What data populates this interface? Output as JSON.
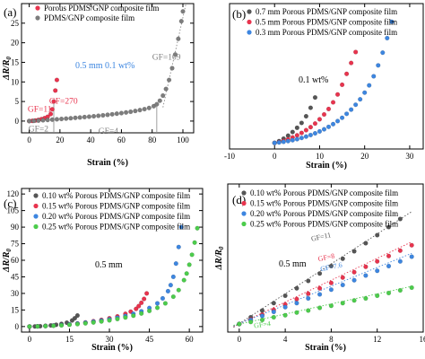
{
  "colors": {
    "red": "#e8344e",
    "gray": "#7d7d7d",
    "blue": "#3d86e0",
    "green": "#4ccc4c",
    "dark": "#555555",
    "axis": "#000000",
    "fit_line": "#888888"
  },
  "chart_data": [
    {
      "type": "scatter",
      "panel_label": "(a)",
      "xlabel": "Strain (%)",
      "ylabel": "ΔR/R",
      "ylabel_subscript": "0",
      "xlim": [
        -5,
        107
      ],
      "ylim": [
        -3,
        30
      ],
      "xticks": [
        0,
        20,
        40,
        60,
        80,
        100
      ],
      "yticks": [
        0,
        5,
        10,
        15,
        20,
        25
      ],
      "legend_position": "top-left",
      "conditions": "0.5 mm    0.1 wt%",
      "series": [
        {
          "name": "Porous PDMS/GNP composite film",
          "color_key": "red",
          "x": [
            0,
            2,
            4,
            6,
            8,
            10,
            12,
            14,
            15,
            16,
            17,
            18
          ],
          "y": [
            0,
            0.05,
            0.15,
            0.3,
            0.5,
            0.75,
            1.1,
            1.8,
            3.0,
            5.0,
            7.8,
            10.5
          ]
        },
        {
          "name": "PDMS/GNP composite film",
          "color_key": "gray",
          "x": [
            0,
            3,
            6,
            9,
            12,
            15,
            18,
            21,
            24,
            27,
            30,
            33,
            36,
            39,
            42,
            45,
            48,
            51,
            54,
            57,
            60,
            63,
            66,
            69,
            72,
            75,
            78,
            81,
            83,
            85,
            87,
            89,
            91,
            93,
            95,
            97,
            99,
            100
          ],
          "y": [
            0,
            0.05,
            0.12,
            0.2,
            0.28,
            0.37,
            0.45,
            0.54,
            0.63,
            0.72,
            0.82,
            0.92,
            1.02,
            1.12,
            1.23,
            1.35,
            1.47,
            1.6,
            1.73,
            1.88,
            2.03,
            2.2,
            2.38,
            2.58,
            2.8,
            3.05,
            3.35,
            3.8,
            4.3,
            5.2,
            6.5,
            8.2,
            10.5,
            13.5,
            17.0,
            21.0,
            25.5,
            28.0
          ]
        }
      ],
      "annotations": [
        {
          "text": "GF=11",
          "color_key": "red",
          "x": -1,
          "y": 2.4
        },
        {
          "text": "GF=270",
          "color_key": "red",
          "x": 13,
          "y": 4.5
        },
        {
          "text": "GF=2",
          "color_key": "gray",
          "x": -0.5,
          "y": -2.7
        },
        {
          "text": "GF=4",
          "color_key": "gray",
          "x": 45,
          "y": -3.2
        },
        {
          "text": "GF=109",
          "color_key": "gray",
          "x": 80,
          "y": 15.7
        }
      ],
      "vlines": [
        16,
        83
      ]
    },
    {
      "type": "scatter",
      "panel_label": "(b)",
      "xlabel": "Strain (%)",
      "ylabel": "",
      "xlim": [
        -10,
        33
      ],
      "ylim": [
        -1,
        23
      ],
      "xticks": [
        -10,
        0,
        10,
        20,
        30
      ],
      "yticks": [],
      "legend_position": "top-left",
      "conditions": "0.1 wt%",
      "series": [
        {
          "name": "0.7 mm Porous PDMS/GNP composite film",
          "color_key": "dark",
          "x": [
            0,
            1,
            2,
            3,
            4,
            5,
            6,
            7,
            8,
            9
          ],
          "y": [
            0,
            0.3,
            0.7,
            1.2,
            1.8,
            2.5,
            3.3,
            4.4,
            5.8,
            7.5
          ]
        },
        {
          "name": "0.5 mm Porous PDMS/GNP composite film",
          "color_key": "red",
          "x": [
            0,
            1,
            2,
            3,
            4,
            5,
            6,
            7,
            8,
            9,
            10,
            11,
            12,
            13,
            14,
            15,
            16,
            17,
            18
          ],
          "y": [
            0,
            0.15,
            0.35,
            0.6,
            0.9,
            1.25,
            1.65,
            2.1,
            2.6,
            3.2,
            3.9,
            4.7,
            5.6,
            6.7,
            8.0,
            9.6,
            11.4,
            13.2,
            15.0
          ]
        },
        {
          "name": "0.3 mm Porous PDMS/GNP composite film",
          "color_key": "blue",
          "x": [
            0,
            1,
            2,
            3,
            4,
            5,
            6,
            7,
            8,
            9,
            10,
            11,
            12,
            13,
            14,
            15,
            16,
            17,
            18,
            19,
            20,
            21,
            22,
            23,
            24,
            25,
            26
          ],
          "y": [
            0,
            0.08,
            0.18,
            0.3,
            0.45,
            0.62,
            0.82,
            1.05,
            1.3,
            1.58,
            1.9,
            2.25,
            2.65,
            3.1,
            3.6,
            4.15,
            4.8,
            5.5,
            6.3,
            7.2,
            8.3,
            9.5,
            11.0,
            12.8,
            14.9,
            17.3,
            20.0
          ]
        }
      ]
    },
    {
      "type": "scatter",
      "panel_label": "(c)",
      "xlabel": "Strain (%)",
      "ylabel": "ΔR/R",
      "ylabel_subscript": "0",
      "xlim": [
        -3,
        65
      ],
      "ylim": [
        -5,
        125
      ],
      "xticks": [
        0,
        15,
        30,
        45,
        60
      ],
      "yticks": [
        0,
        15,
        30,
        45,
        60,
        75,
        90,
        105,
        120
      ],
      "legend_position": "top-left",
      "conditions": "0.5 mm",
      "series": [
        {
          "name": "0.10 wt% Porous PDMS/GNP composite film",
          "color_key": "dark",
          "x": [
            0,
            2,
            4,
            6,
            8,
            10,
            12,
            14,
            16,
            17,
            18
          ],
          "y": [
            0,
            0.1,
            0.3,
            0.6,
            1.0,
            1.6,
            2.4,
            3.5,
            5.5,
            7.5,
            10.0
          ]
        },
        {
          "name": "0.15 wt% Porous PDMS/GNP composite film",
          "color_key": "red",
          "x": [
            0,
            3,
            6,
            9,
            12,
            15,
            18,
            21,
            24,
            27,
            30,
            33,
            36,
            38,
            40,
            41,
            42,
            43,
            44
          ],
          "y": [
            0,
            0.2,
            0.5,
            0.9,
            1.4,
            2.0,
            2.8,
            3.7,
            4.8,
            6.0,
            7.5,
            9.2,
            11.5,
            13.5,
            16.0,
            18.5,
            21.5,
            25.0,
            30.0
          ]
        },
        {
          "name": "0.20 wt% Porous PDMS/GNP composite film",
          "color_key": "blue",
          "x": [
            0,
            3,
            6,
            9,
            12,
            15,
            18,
            21,
            24,
            27,
            30,
            33,
            36,
            39,
            42,
            45,
            48,
            50,
            52,
            53,
            54,
            55,
            56,
            57
          ],
          "y": [
            0,
            0.2,
            0.5,
            0.9,
            1.4,
            2.0,
            2.7,
            3.5,
            4.4,
            5.4,
            6.6,
            8.0,
            9.6,
            11.5,
            13.8,
            16.8,
            21.0,
            25.5,
            32.0,
            37.5,
            45.0,
            57.0,
            72.0,
            90.0
          ]
        },
        {
          "name": "0.25 wt% Porous PDMS/GNP composite film",
          "color_key": "green",
          "x": [
            0,
            3,
            6,
            9,
            12,
            15,
            18,
            21,
            24,
            27,
            30,
            33,
            36,
            39,
            42,
            45,
            48,
            51,
            54,
            56,
            58,
            59,
            60,
            61,
            62,
            63
          ],
          "y": [
            0,
            0.15,
            0.4,
            0.7,
            1.1,
            1.6,
            2.2,
            2.9,
            3.7,
            4.6,
            5.6,
            6.8,
            8.2,
            9.8,
            11.8,
            14.2,
            17.0,
            21.0,
            27.0,
            33.0,
            42.0,
            48.0,
            56.0,
            65.0,
            76.0,
            89.0
          ]
        }
      ]
    },
    {
      "type": "scatter",
      "panel_label": "(d)",
      "xlabel": "Strain (%)",
      "ylabel": "ΔR/R",
      "ylabel_subscript": "0",
      "xlim": [
        -1,
        16
      ],
      "ylim": [
        -0.12,
        2.08
      ],
      "xticks": [
        0,
        4,
        8,
        12,
        16
      ],
      "yticks": [],
      "legend_position": "top-left",
      "conditions": "0.5 mm",
      "series": [
        {
          "name": "0.10 wt% Porous PDMS/GNP composite film",
          "color_key": "dark",
          "x": [
            0,
            1,
            2,
            3,
            4,
            5,
            6,
            7,
            8,
            9,
            10,
            11,
            12,
            13,
            14
          ],
          "y": [
            0,
            0.1,
            0.2,
            0.31,
            0.42,
            0.53,
            0.64,
            0.75,
            0.86,
            0.97,
            1.08,
            1.2,
            1.32,
            1.44,
            1.56
          ]
        },
        {
          "name": "0.15 wt% Porous PDMS/GNP composite film",
          "color_key": "red",
          "x": [
            0,
            1,
            2,
            3,
            4,
            5,
            6,
            7,
            8,
            9,
            10,
            11,
            12,
            13,
            14,
            15
          ],
          "y": [
            0,
            0.07,
            0.14,
            0.21,
            0.29,
            0.37,
            0.45,
            0.53,
            0.61,
            0.69,
            0.77,
            0.85,
            0.93,
            1.01,
            1.09,
            1.17
          ]
        },
        {
          "name": "0.20 wt% Porous PDMS/GNP composite film",
          "color_key": "blue",
          "x": [
            0,
            1,
            2,
            3,
            4,
            5,
            6,
            7,
            8,
            9,
            10,
            11,
            12,
            13,
            14,
            15
          ],
          "y": [
            0,
            0.06,
            0.12,
            0.18,
            0.25,
            0.31,
            0.38,
            0.44,
            0.51,
            0.58,
            0.65,
            0.72,
            0.79,
            0.86,
            0.93,
            1.0
          ]
        },
        {
          "name": "0.25 wt% Porous PDMS/GNP composite film",
          "color_key": "green",
          "x": [
            0,
            1,
            2,
            3,
            4,
            5,
            6,
            7,
            8,
            9,
            10,
            11,
            12,
            13,
            14,
            15
          ],
          "y": [
            0,
            0.03,
            0.06,
            0.1,
            0.13,
            0.17,
            0.2,
            0.24,
            0.27,
            0.31,
            0.35,
            0.38,
            0.42,
            0.46,
            0.5,
            0.54
          ]
        }
      ],
      "fit_lines": [
        {
          "color_key": "dark",
          "x": [
            -0.5,
            15
          ],
          "y": [
            -0.05,
            1.67
          ]
        },
        {
          "color_key": "red",
          "x": [
            -0.5,
            15
          ],
          "y": [
            -0.04,
            1.22
          ]
        },
        {
          "color_key": "blue",
          "x": [
            -0.5,
            15
          ],
          "y": [
            -0.03,
            1.05
          ]
        },
        {
          "color_key": "green",
          "x": [
            -0.5,
            15
          ],
          "y": [
            -0.02,
            0.56
          ]
        }
      ],
      "annotations": [
        {
          "text": "GF=11",
          "color_key": "dark",
          "x": 6.3,
          "y": 1.23
        },
        {
          "text": "GF=8",
          "color_key": "red",
          "x": 6.9,
          "y": 0.93
        },
        {
          "text": "GF=7.6",
          "color_key": "blue",
          "x": 7.1,
          "y": 0.78
        },
        {
          "text": "GF=4",
          "color_key": "green",
          "x": 1.3,
          "y": -0.06
        }
      ]
    }
  ]
}
